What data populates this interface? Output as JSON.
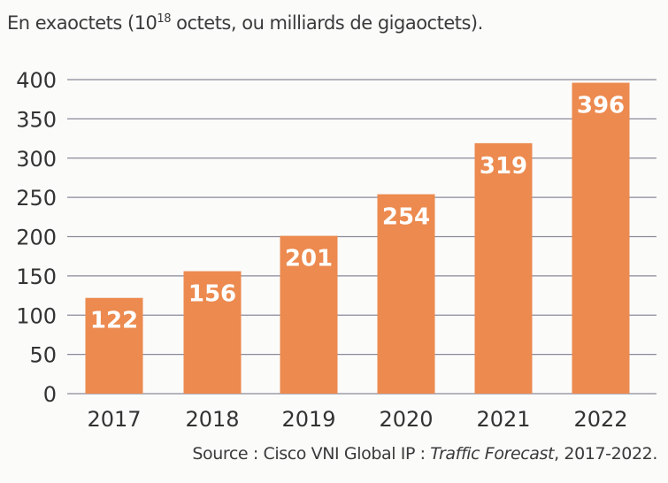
{
  "chart_data": {
    "type": "bar",
    "title": {
      "prefix": "En exaoctets (10",
      "superscript": "18",
      "suffix": " octets, ou milliards de gigaoctets)."
    },
    "categories": [
      "2017",
      "2018",
      "2019",
      "2020",
      "2021",
      "2022"
    ],
    "values": [
      122,
      156,
      201,
      254,
      319,
      396
    ],
    "data_labels": [
      "122",
      "156",
      "201",
      "254",
      "319",
      "396"
    ],
    "ylim": [
      0,
      400
    ],
    "yticks": [
      "0",
      "50",
      "100",
      "150",
      "200",
      "250",
      "300",
      "350",
      "400"
    ],
    "grid": true,
    "bar_color": "#ec8a4f",
    "source": {
      "prefix": "Source : Cisco VNI Global IP : ",
      "italic": "Traffic Forecast",
      "suffix": ", 2017-2022."
    }
  }
}
